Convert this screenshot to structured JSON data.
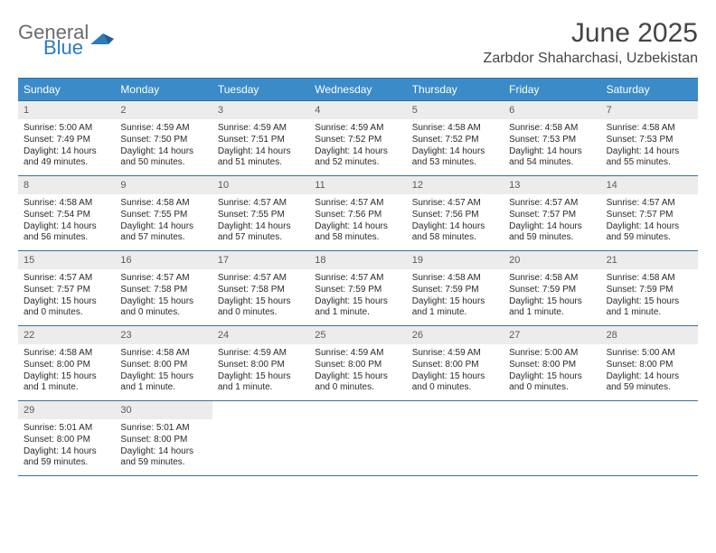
{
  "logo": {
    "line1": "General",
    "line2": "Blue"
  },
  "title": "June 2025",
  "location": "Zarbdor Shaharchasi, Uzbekistan",
  "colors": {
    "header_bg": "#3b8bc9",
    "header_border": "#2d6fa3",
    "cell_border": "#3b6f9c",
    "daynum_bg": "#ececec",
    "logo_gray": "#6b6b6b",
    "logo_blue": "#2b7bbf"
  },
  "dow": [
    "Sunday",
    "Monday",
    "Tuesday",
    "Wednesday",
    "Thursday",
    "Friday",
    "Saturday"
  ],
  "days": [
    {
      "n": "1",
      "sunrise": "5:00 AM",
      "sunset": "7:49 PM",
      "daylight": "14 hours and 49 minutes."
    },
    {
      "n": "2",
      "sunrise": "4:59 AM",
      "sunset": "7:50 PM",
      "daylight": "14 hours and 50 minutes."
    },
    {
      "n": "3",
      "sunrise": "4:59 AM",
      "sunset": "7:51 PM",
      "daylight": "14 hours and 51 minutes."
    },
    {
      "n": "4",
      "sunrise": "4:59 AM",
      "sunset": "7:52 PM",
      "daylight": "14 hours and 52 minutes."
    },
    {
      "n": "5",
      "sunrise": "4:58 AM",
      "sunset": "7:52 PM",
      "daylight": "14 hours and 53 minutes."
    },
    {
      "n": "6",
      "sunrise": "4:58 AM",
      "sunset": "7:53 PM",
      "daylight": "14 hours and 54 minutes."
    },
    {
      "n": "7",
      "sunrise": "4:58 AM",
      "sunset": "7:53 PM",
      "daylight": "14 hours and 55 minutes."
    },
    {
      "n": "8",
      "sunrise": "4:58 AM",
      "sunset": "7:54 PM",
      "daylight": "14 hours and 56 minutes."
    },
    {
      "n": "9",
      "sunrise": "4:58 AM",
      "sunset": "7:55 PM",
      "daylight": "14 hours and 57 minutes."
    },
    {
      "n": "10",
      "sunrise": "4:57 AM",
      "sunset": "7:55 PM",
      "daylight": "14 hours and 57 minutes."
    },
    {
      "n": "11",
      "sunrise": "4:57 AM",
      "sunset": "7:56 PM",
      "daylight": "14 hours and 58 minutes."
    },
    {
      "n": "12",
      "sunrise": "4:57 AM",
      "sunset": "7:56 PM",
      "daylight": "14 hours and 58 minutes."
    },
    {
      "n": "13",
      "sunrise": "4:57 AM",
      "sunset": "7:57 PM",
      "daylight": "14 hours and 59 minutes."
    },
    {
      "n": "14",
      "sunrise": "4:57 AM",
      "sunset": "7:57 PM",
      "daylight": "14 hours and 59 minutes."
    },
    {
      "n": "15",
      "sunrise": "4:57 AM",
      "sunset": "7:57 PM",
      "daylight": "15 hours and 0 minutes."
    },
    {
      "n": "16",
      "sunrise": "4:57 AM",
      "sunset": "7:58 PM",
      "daylight": "15 hours and 0 minutes."
    },
    {
      "n": "17",
      "sunrise": "4:57 AM",
      "sunset": "7:58 PM",
      "daylight": "15 hours and 0 minutes."
    },
    {
      "n": "18",
      "sunrise": "4:57 AM",
      "sunset": "7:59 PM",
      "daylight": "15 hours and 1 minute."
    },
    {
      "n": "19",
      "sunrise": "4:58 AM",
      "sunset": "7:59 PM",
      "daylight": "15 hours and 1 minute."
    },
    {
      "n": "20",
      "sunrise": "4:58 AM",
      "sunset": "7:59 PM",
      "daylight": "15 hours and 1 minute."
    },
    {
      "n": "21",
      "sunrise": "4:58 AM",
      "sunset": "7:59 PM",
      "daylight": "15 hours and 1 minute."
    },
    {
      "n": "22",
      "sunrise": "4:58 AM",
      "sunset": "8:00 PM",
      "daylight": "15 hours and 1 minute."
    },
    {
      "n": "23",
      "sunrise": "4:58 AM",
      "sunset": "8:00 PM",
      "daylight": "15 hours and 1 minute."
    },
    {
      "n": "24",
      "sunrise": "4:59 AM",
      "sunset": "8:00 PM",
      "daylight": "15 hours and 1 minute."
    },
    {
      "n": "25",
      "sunrise": "4:59 AM",
      "sunset": "8:00 PM",
      "daylight": "15 hours and 0 minutes."
    },
    {
      "n": "26",
      "sunrise": "4:59 AM",
      "sunset": "8:00 PM",
      "daylight": "15 hours and 0 minutes."
    },
    {
      "n": "27",
      "sunrise": "5:00 AM",
      "sunset": "8:00 PM",
      "daylight": "15 hours and 0 minutes."
    },
    {
      "n": "28",
      "sunrise": "5:00 AM",
      "sunset": "8:00 PM",
      "daylight": "14 hours and 59 minutes."
    },
    {
      "n": "29",
      "sunrise": "5:01 AM",
      "sunset": "8:00 PM",
      "daylight": "14 hours and 59 minutes."
    },
    {
      "n": "30",
      "sunrise": "5:01 AM",
      "sunset": "8:00 PM",
      "daylight": "14 hours and 59 minutes."
    }
  ],
  "labels": {
    "sunrise": "Sunrise:",
    "sunset": "Sunset:",
    "daylight": "Daylight:"
  }
}
